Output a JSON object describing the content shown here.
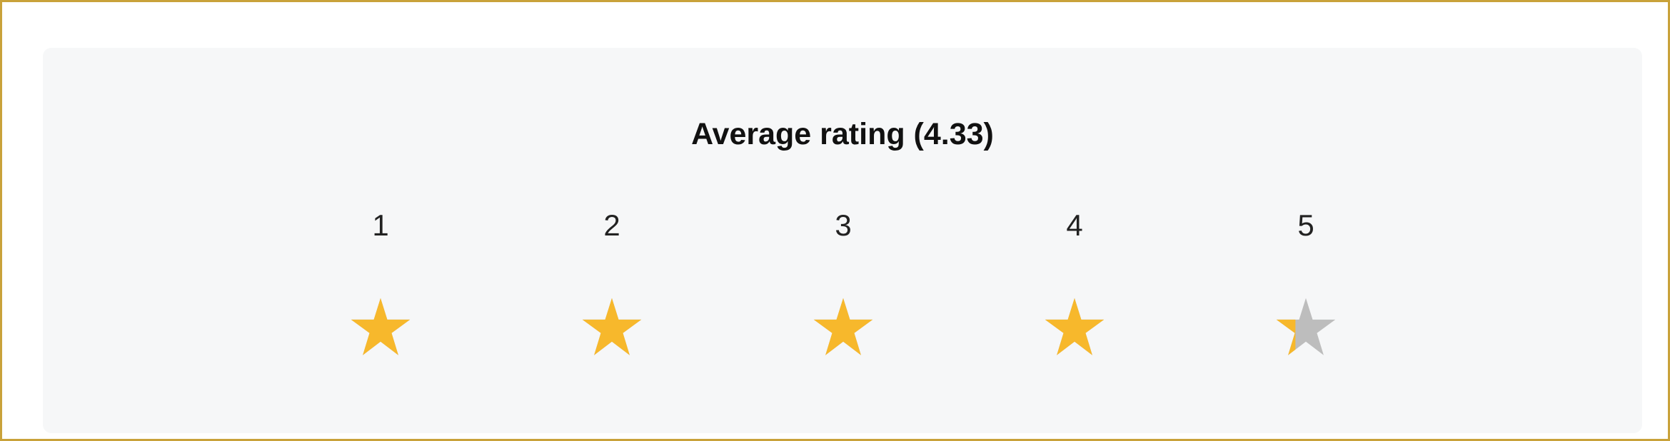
{
  "title": "Average rating (4.33)",
  "average": 4.33,
  "max_rating": 5,
  "colors": {
    "star_filled": "#f7b82c",
    "star_empty": "#bdbdbd",
    "panel_bg": "#f6f7f8",
    "border": "#c9a23a"
  },
  "ratings": [
    {
      "label": "1",
      "fill": 1
    },
    {
      "label": "2",
      "fill": 1
    },
    {
      "label": "3",
      "fill": 1
    },
    {
      "label": "4",
      "fill": 1
    },
    {
      "label": "5",
      "fill": 0.33
    }
  ]
}
